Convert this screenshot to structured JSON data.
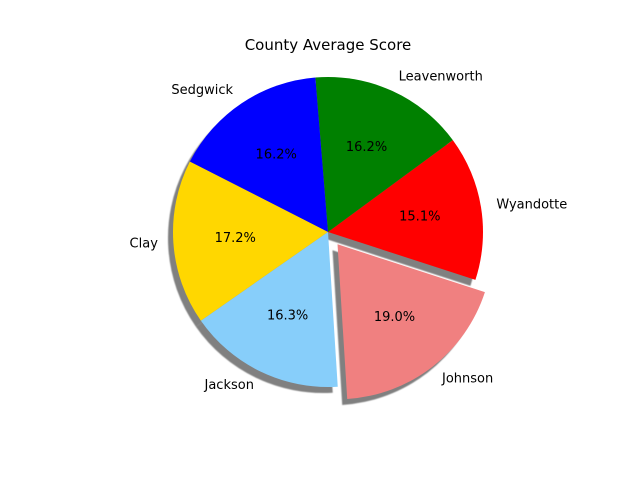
{
  "chart_data": {
    "type": "pie",
    "title": "County Average Score",
    "categories": [
      "Wyandotte",
      "Leavenworth",
      "Sedgwick",
      "Clay",
      "Jackson",
      "Johnson"
    ],
    "values": [
      15.1,
      16.2,
      16.2,
      17.2,
      16.3,
      19.0
    ],
    "value_labels": [
      "15.1%",
      "16.2%",
      "16.2%",
      "17.2%",
      "16.3%",
      "19.0%"
    ],
    "colors": [
      "#ff0000",
      "#008000",
      "#0000ff",
      "#ffd700",
      "#87cefa",
      "#f08080"
    ],
    "exploded": "Johnson",
    "shadow": true,
    "legend": "none"
  }
}
